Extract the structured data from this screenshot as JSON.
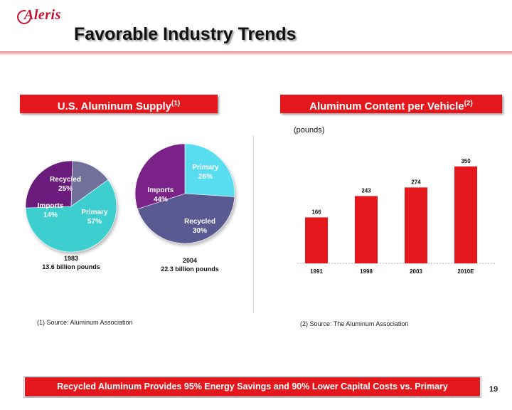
{
  "logo": {
    "text": "Aleris"
  },
  "title": "Favorable Industry Trends",
  "left_panel": {
    "header": "U.S. Aluminum Supply",
    "header_note": "(1)",
    "pie_1983": {
      "slices": [
        {
          "label": "Recycled",
          "value": 25,
          "text": "25%",
          "color": "#6a1f7c"
        },
        {
          "label": "Imports",
          "value": 14,
          "text": "14%",
          "color": "#6f6f9a"
        },
        {
          "label": "Primary",
          "value": 57,
          "text": "57%",
          "color": "#3ccfd0"
        }
      ],
      "caption_year": "1983",
      "caption_amount": "13.6 billion pounds"
    },
    "pie_2004": {
      "slices": [
        {
          "label": "Primary",
          "value": 26,
          "text": "26%",
          "color": "#58ddf0"
        },
        {
          "label": "Imports",
          "value": 44,
          "text": "44%",
          "color": "#5a5a92"
        },
        {
          "label": "Recycled",
          "value": 30,
          "text": "30%",
          "color": "#7a2288"
        }
      ],
      "caption_year": "2004",
      "caption_amount": "22.3 billion pounds"
    },
    "source_note": "(1) Source: Aluminum Association"
  },
  "right_panel": {
    "header": "Aluminum Content per Vehicle",
    "header_note": "(2)",
    "unit_label": "(pounds)",
    "source_note": "(2) Source: The Aluminum Association"
  },
  "chart_data": {
    "type": "bar",
    "title": "Aluminum Content per Vehicle",
    "ylabel": "(pounds)",
    "categories": [
      "1991",
      "1998",
      "2003",
      "2010E"
    ],
    "values": [
      166,
      243,
      274,
      350
    ],
    "ylim": [
      0,
      370
    ],
    "color": "#e4181c"
  },
  "bottom_banner": "Recycled Aluminum Provides 95% Energy Savings and 90% Lower Capital Costs vs. Primary",
  "page_number": "19"
}
